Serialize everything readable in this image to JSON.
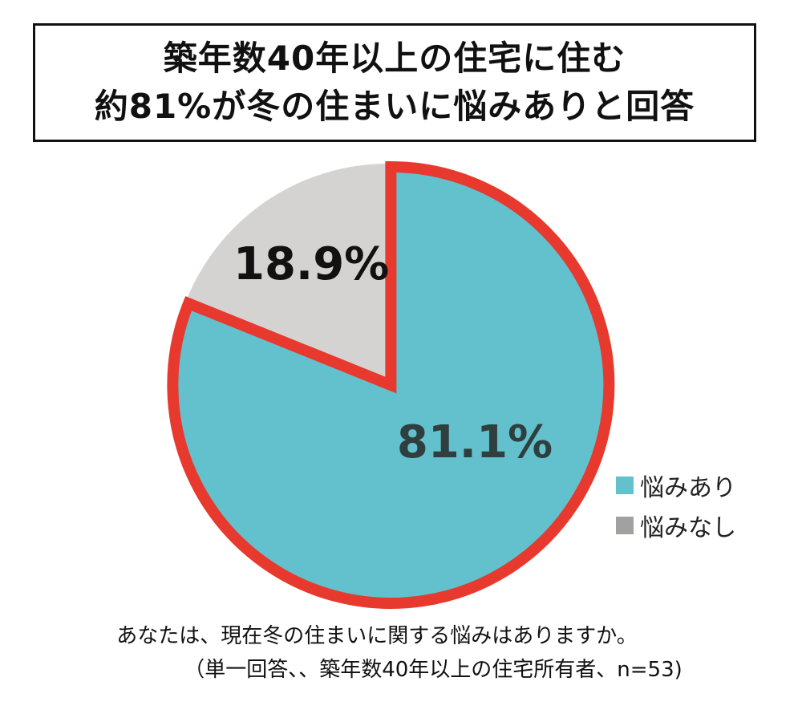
{
  "title_lines": [
    "築年数40年以上の住宅に住む",
    "約81%が冬の住まいに悩みありと回答"
  ],
  "chart_data": {
    "type": "pie",
    "slices": [
      {
        "name": "悩みあり",
        "value": 81.1,
        "label": "81.1%",
        "color": "#62C1CC",
        "highlight_color": "#E8392E"
      },
      {
        "name": "悩みなし",
        "value": 18.9,
        "label": "18.9%",
        "color": "#D5D2D2"
      }
    ],
    "start_angle_deg": 0,
    "direction": "clockwise",
    "legend_position": "right-bottom"
  },
  "legend": [
    {
      "label": "悩みあり",
      "color": "#62C1CC"
    },
    {
      "label": "悩みなし",
      "color": "#A3A0A0"
    }
  ],
  "notes": [
    "あなたは、現在冬の住まいに関する悩みはありますか。",
    "（単一回答、、築年数40年以上の住宅所有者、n=53)"
  ]
}
